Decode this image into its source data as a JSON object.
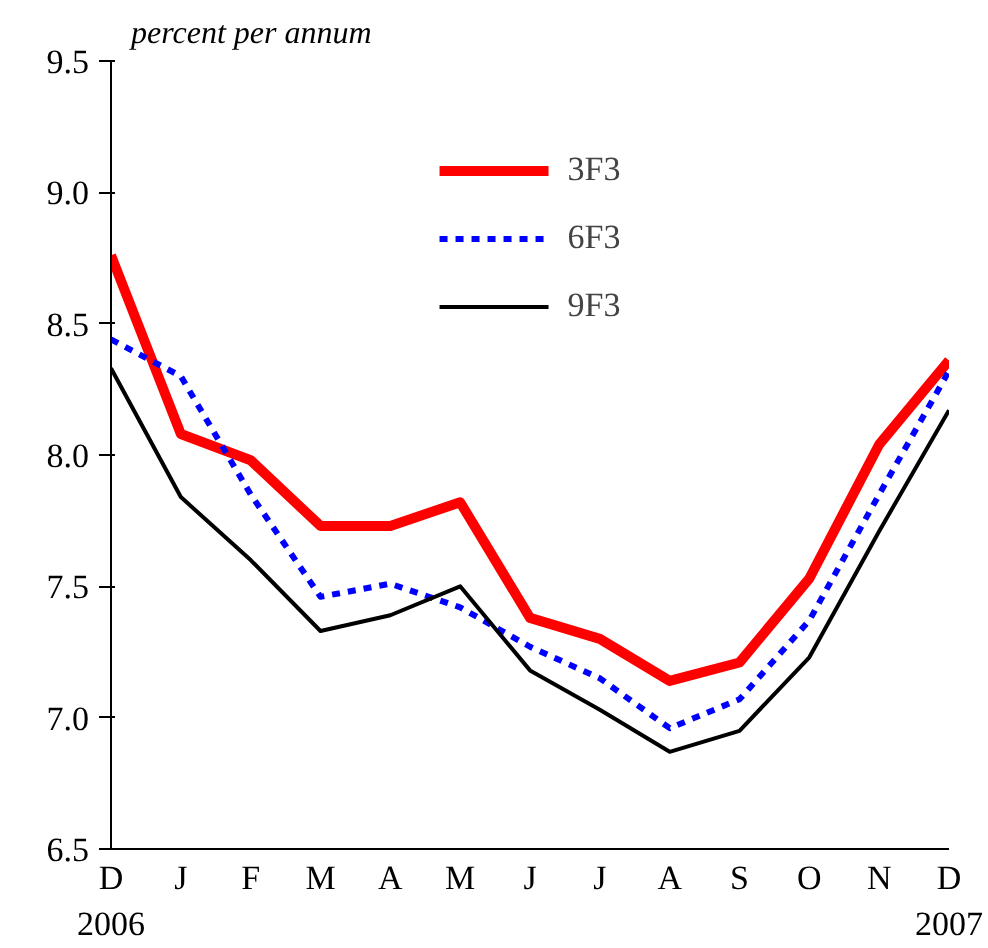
{
  "chart_data": {
    "type": "line",
    "ylabel": "percent per annum",
    "categories": [
      "D\n2006",
      "J",
      "F",
      "M",
      "A",
      "M",
      "J",
      "J",
      "A",
      "S",
      "O",
      "N",
      "D\n2007"
    ],
    "ylim": [
      6.5,
      9.5
    ],
    "yticks": [
      6.5,
      {
        "value": 7,
        "label": "7.0"
      },
      7.5,
      {
        "value": 8,
        "label": "8.0"
      },
      8.5,
      {
        "value": 9,
        "label": "9.0"
      },
      9.5
    ],
    "grid": false,
    "legend": "top",
    "marker": "none",
    "series": [
      {
        "name": "3F3",
        "color": "#ff0000",
        "line_style": "solid",
        "values": [
          8.76,
          8.08,
          7.98,
          7.73,
          7.73,
          7.82,
          7.38,
          7.3,
          7.14,
          7.21,
          7.53,
          8.04,
          8.36
        ]
      },
      {
        "name": "6F3",
        "color": "#0000ff",
        "line_style": "dotted",
        "values": [
          8.44,
          8.3,
          7.85,
          7.46,
          7.51,
          7.42,
          7.27,
          7.15,
          6.96,
          7.07,
          7.37,
          7.85,
          8.32
        ]
      },
      {
        "name": "9F3",
        "color": "#000000",
        "line_style": "solid",
        "values": [
          8.33,
          7.84,
          7.6,
          7.33,
          7.39,
          7.5,
          7.18,
          7.03,
          6.87,
          6.95,
          7.23,
          7.71,
          8.17
        ]
      }
    ]
  }
}
